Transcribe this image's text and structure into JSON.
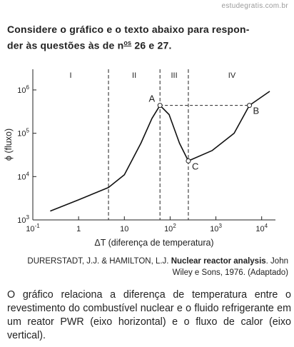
{
  "watermark": "estudegratis.com.br",
  "heading": {
    "line1": "Considere o gráfico e o texto abaixo para respon-",
    "line2_start": "der às questões às de n",
    "line2_sup": "os",
    "line2_end": " 26 e 27."
  },
  "chart_data": {
    "type": "line",
    "x_label": "ΔT (diferença de temperatura)",
    "y_label": "ϕ (fluxo)",
    "log_x": true,
    "log_y": true,
    "color": "#111",
    "x": [
      0.24,
      1,
      4.5,
      10,
      23,
      40,
      60,
      95,
      160,
      250,
      830,
      2500,
      5400,
      15000
    ],
    "values": [
      1600,
      2900,
      5600,
      11000,
      59000,
      220000,
      440000,
      270000,
      59000,
      23000,
      40000,
      100000,
      440000,
      930000
    ],
    "point_labels": [
      null,
      null,
      null,
      null,
      null,
      null,
      "A",
      null,
      null,
      "C",
      null,
      null,
      "B",
      null
    ],
    "xlim": [
      0.1,
      20000
    ],
    "ylim": [
      1000,
      3000000
    ],
    "xticks": [
      {
        "value": 0.1,
        "label": "10",
        "exponent": "-1"
      },
      1,
      10,
      {
        "value": 100,
        "label": "10",
        "exponent": "2"
      },
      {
        "value": 1000,
        "label": "10",
        "exponent": "3"
      },
      {
        "value": 10000,
        "label": "10",
        "exponent": "4"
      }
    ],
    "yticks": [
      {
        "value": 1000,
        "label": "10",
        "exponent": "3"
      },
      {
        "value": 10000,
        "label": "10",
        "exponent": "4"
      },
      {
        "value": 100000,
        "label": "10",
        "exponent": "5"
      },
      {
        "value": 1000000,
        "label": "10",
        "exponent": "6"
      }
    ],
    "region_bounds": [
      4.5,
      60,
      250
    ],
    "regions": [
      "I",
      "II",
      "III",
      "IV"
    ]
  },
  "citation": {
    "authors": "DURERSTADT, J.J. & HAMILTON, L.J. ",
    "title": "Nuclear reactor analysis",
    "rest": ". John Wiley e Sons, 1976. (Adaptado)"
  },
  "paragraph": "O gráfico relaciona a diferença de temperatura entre o revestimento do combustível nuclear e o fluido refrigerante em um reator PWR (eixo horizontal) e o fluxo de calor (eixo vertical)."
}
